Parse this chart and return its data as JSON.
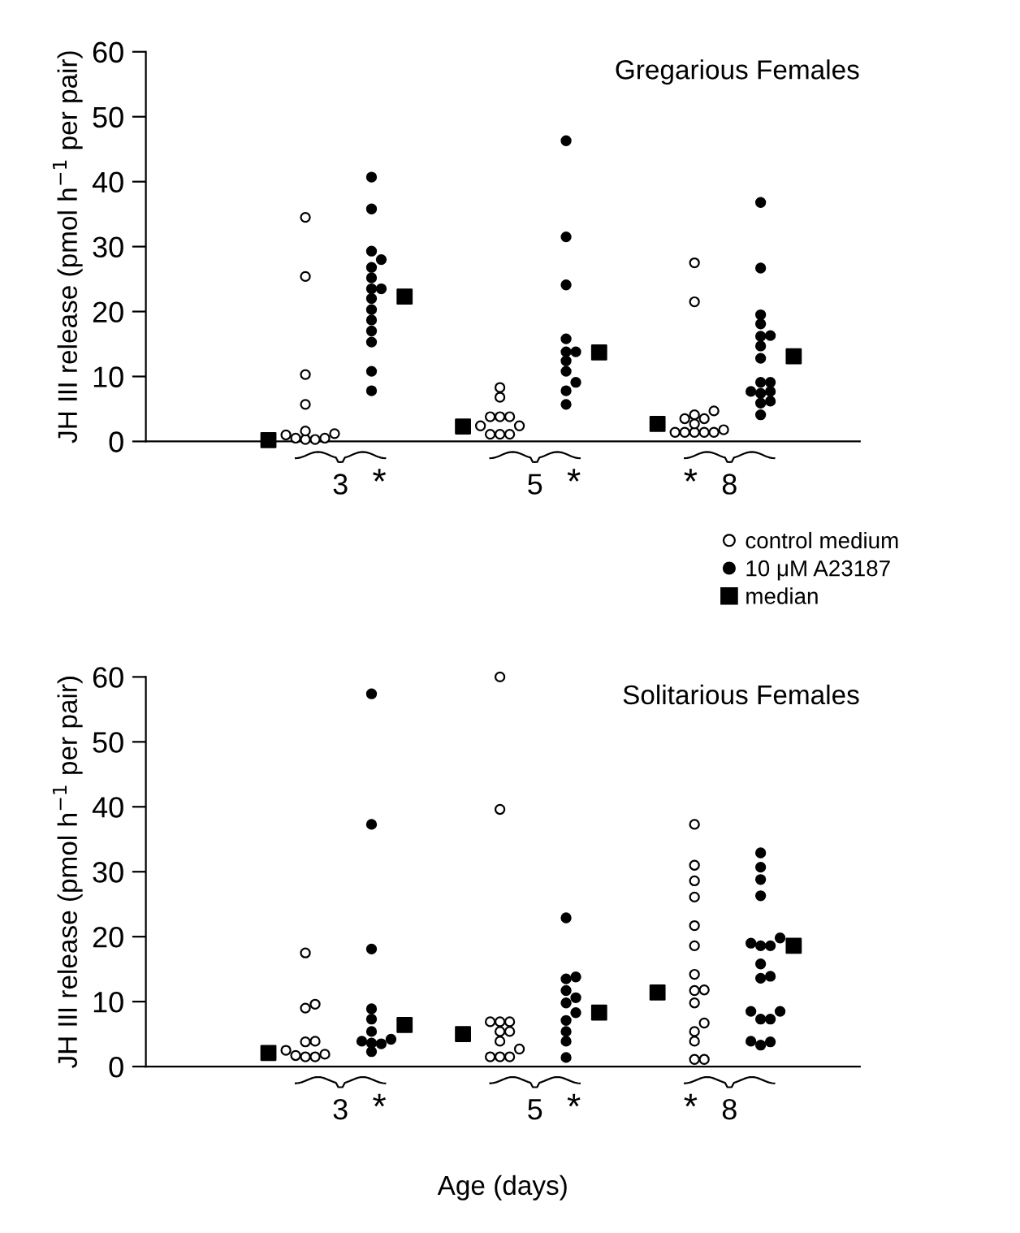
{
  "chart_data": [
    {
      "type": "scatter",
      "title": "Gregarious Females",
      "ylabel": "JH III release (pmol h$^{−1}$ per pair)",
      "categories": [
        "3",
        "5",
        "8"
      ],
      "ylim": [
        0,
        60
      ],
      "yticks": [
        0,
        10,
        20,
        30,
        40,
        50,
        60
      ],
      "grid": false,
      "legend": "right",
      "annotations": [
        "*",
        "*",
        "*"
      ],
      "series": [
        {
          "name": "control medium",
          "color": "#ffffff",
          "marker": "circle",
          "x": [
            "3",
            "3",
            "3",
            "3",
            "3",
            "3",
            "3",
            "3",
            "3",
            "3",
            "3",
            "5",
            "5",
            "5",
            "5",
            "5",
            "5",
            "5",
            "5",
            "5",
            "5",
            "8",
            "8",
            "8",
            "8",
            "8",
            "8",
            "8",
            "8",
            "8",
            "8",
            "8",
            "8",
            "8"
          ],
          "values": [
            34.5,
            25.4,
            10.3,
            5.7,
            0.3,
            0.5,
            1.6,
            1.2,
            1.0,
            0.5,
            0.3,
            8.3,
            6.8,
            3.8,
            3.8,
            3.8,
            2.4,
            2.4,
            1.1,
            1.1,
            1.1,
            27.5,
            21.5,
            1.8,
            1.4,
            1.4,
            1.4,
            1.4,
            1.4,
            3.5,
            4.1,
            4.7,
            3.5,
            2.7
          ]
        },
        {
          "name": "10 μM A23187",
          "color": "#000000",
          "marker": "circle",
          "x": [
            "3",
            "3",
            "3",
            "3",
            "3",
            "3",
            "3",
            "3",
            "3",
            "3",
            "3",
            "3",
            "3",
            "3",
            "3",
            "5",
            "5",
            "5",
            "5",
            "5",
            "5",
            "5",
            "5",
            "5",
            "5",
            "5",
            "8",
            "8",
            "8",
            "8",
            "8",
            "8",
            "8",
            "8",
            "8",
            "8",
            "8",
            "8",
            "8",
            "8",
            "8",
            "8"
          ],
          "values": [
            40.7,
            35.8,
            29.3,
            28.0,
            26.8,
            25.2,
            23.5,
            22.0,
            20.3,
            18.7,
            17.0,
            15.3,
            10.8,
            7.8,
            23.5,
            46.3,
            31.5,
            24.1,
            15.8,
            13.8,
            12.4,
            10.8,
            9.1,
            7.8,
            5.7,
            13.8,
            36.8,
            26.7,
            19.5,
            18.1,
            16.3,
            14.7,
            12.8,
            9.1,
            7.7,
            5.9,
            4.1,
            16.2,
            9.1,
            6.2,
            7.4,
            7.7
          ]
        },
        {
          "name": "median",
          "color": "#000000",
          "marker": "square",
          "x": [
            "3",
            "3",
            "5",
            "5",
            "8",
            "8"
          ],
          "values": [
            0.2,
            22.3,
            2.3,
            13.7,
            2.7,
            13.1
          ]
        }
      ]
    },
    {
      "type": "scatter",
      "title": "Solitarious Females",
      "xlabel": "Age (days)",
      "ylabel": "JH III release (pmol h$^{−1}$ per pair)",
      "categories": [
        "3",
        "5",
        "8"
      ],
      "ylim": [
        0,
        60
      ],
      "yticks": [
        0,
        10,
        20,
        30,
        40,
        50,
        60
      ],
      "grid": false,
      "annotations": [
        "*",
        "*",
        "*"
      ],
      "series": [
        {
          "color": "#ffffff",
          "marker": "circle",
          "x": [
            "3",
            "3",
            "3",
            "3",
            "3",
            "3",
            "3",
            "3",
            "3",
            "3",
            "5",
            "5",
            "5",
            "5",
            "5",
            "5",
            "5",
            "5",
            "5",
            "5",
            "5",
            "5",
            "8",
            "8",
            "8",
            "8",
            "8",
            "8",
            "8",
            "8",
            "8",
            "8",
            "8",
            "8",
            "8",
            "8",
            "8"
          ],
          "values": [
            17.5,
            9.6,
            9.0,
            3.9,
            3.8,
            2.5,
            1.9,
            1.5,
            1.5,
            1.7,
            60,
            39.6,
            6.9,
            6.9,
            6.9,
            5.4,
            5.4,
            3.9,
            2.7,
            1.5,
            1.5,
            1.5,
            37.3,
            31.0,
            28.6,
            26.1,
            21.7,
            18.6,
            14.2,
            11.8,
            9.8,
            6.7,
            5.4,
            3.9,
            1.1,
            11.7,
            1.1
          ]
        },
        {
          "color": "#000000",
          "marker": "circle",
          "x": [
            "3",
            "3",
            "3",
            "3",
            "3",
            "3",
            "3",
            "3",
            "3",
            "3",
            "3",
            "5",
            "5",
            "5",
            "5",
            "5",
            "5",
            "5",
            "5",
            "5",
            "5",
            "5",
            "8",
            "8",
            "8",
            "8",
            "8",
            "8",
            "8",
            "8",
            "8",
            "8",
            "8",
            "8",
            "8",
            "8",
            "8",
            "8",
            "8",
            "8"
          ],
          "values": [
            57.4,
            37.3,
            18.1,
            8.9,
            7.3,
            5.4,
            4.2,
            3.6,
            2.3,
            3.9,
            3.5,
            22.9,
            13.5,
            11.7,
            9.8,
            8.3,
            7.1,
            5.4,
            3.9,
            1.4,
            13.8,
            10.6,
            32.9,
            30.7,
            28.8,
            26.3,
            19.8,
            15.8,
            13.6,
            8.5,
            7.3,
            3.8,
            19.0,
            18.6,
            18.6,
            13.9,
            8.5,
            7.3,
            3.9,
            3.3
          ]
        },
        {
          "color": "#000000",
          "marker": "square",
          "x": [
            "3",
            "3",
            "5",
            "5",
            "8",
            "8"
          ],
          "values": [
            2.1,
            6.4,
            5.0,
            8.3,
            11.4,
            18.6
          ]
        }
      ]
    }
  ]
}
